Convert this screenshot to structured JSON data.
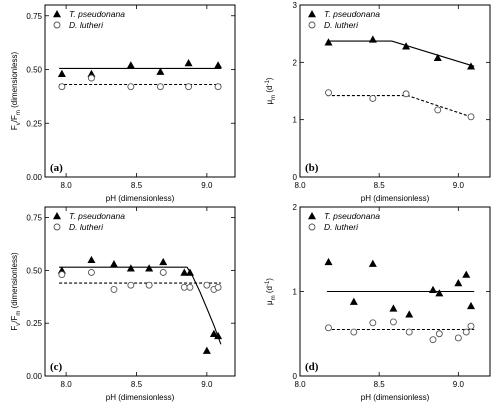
{
  "chart_data": [
    {
      "type": "scatter",
      "panel_label": "(a)",
      "xlabel": "pH (dimensionless)",
      "ylabel_main": "F",
      "ylabel_sub1": "v",
      "ylabel_mid": "/F",
      "ylabel_sub2": "m",
      "ylabel_tail": " (dimensionless)",
      "xlim": [
        7.85,
        9.2
      ],
      "ylim": [
        0.0,
        0.8
      ],
      "xticks": [
        8.0,
        8.5,
        9.0
      ],
      "xtick_labels": [
        "8.0",
        "8.5",
        "9.0"
      ],
      "yticks": [
        0.0,
        0.25,
        0.5,
        0.75
      ],
      "ytick_labels": [
        "0.00",
        "0.25",
        "0.50",
        "0.75"
      ],
      "legend_position": "top-left",
      "series": [
        {
          "name": "T. pseudonana",
          "marker": "triangle-filled",
          "x": [
            7.97,
            8.18,
            8.46,
            8.67,
            8.87,
            9.08
          ],
          "y": [
            0.48,
            0.48,
            0.52,
            0.49,
            0.53,
            0.52
          ]
        },
        {
          "name": "D. lutheri",
          "marker": "circle-open",
          "x": [
            7.97,
            8.18,
            8.46,
            8.67,
            8.87,
            9.08
          ],
          "y": [
            0.42,
            0.46,
            0.42,
            0.42,
            0.42,
            0.42
          ]
        }
      ],
      "fits": [
        {
          "style": "solid",
          "x": [
            7.95,
            9.1
          ],
          "y": [
            0.505,
            0.505
          ]
        },
        {
          "style": "dashed",
          "x": [
            7.95,
            9.1
          ],
          "y": [
            0.43,
            0.43
          ]
        }
      ]
    },
    {
      "type": "scatter",
      "panel_label": "(b)",
      "xlabel": "pH (dimensionless)",
      "ylabel_main": "μ",
      "ylabel_sub1": "m",
      "ylabel_mid": " (d",
      "ylabel_sup": "-1",
      "ylabel_tail": ")",
      "xlim": [
        8.0,
        9.2
      ],
      "ylim": [
        0.0,
        3.0
      ],
      "xticks": [
        8.0,
        8.5,
        9.0
      ],
      "xtick_labels": [
        "8.0",
        "8.5",
        "9.0"
      ],
      "yticks": [
        0,
        1,
        2,
        3
      ],
      "ytick_labels": [
        "0",
        "1",
        "2",
        "3"
      ],
      "legend_position": "top-left",
      "series": [
        {
          "name": "T. pseudonana",
          "marker": "triangle-filled",
          "x": [
            8.18,
            8.46,
            8.67,
            8.87,
            9.08
          ],
          "y": [
            2.35,
            2.4,
            2.28,
            2.08,
            1.93
          ]
        },
        {
          "name": "D. lutheri",
          "marker": "circle-open",
          "x": [
            8.18,
            8.46,
            8.67,
            8.87,
            9.08
          ],
          "y": [
            1.47,
            1.37,
            1.45,
            1.17,
            1.05
          ]
        }
      ],
      "fits": [
        {
          "style": "solid",
          "x": [
            8.17,
            8.58,
            9.1
          ],
          "y": [
            2.37,
            2.37,
            1.93
          ]
        },
        {
          "style": "dashed",
          "x": [
            8.17,
            8.68,
            9.1
          ],
          "y": [
            1.42,
            1.42,
            1.03
          ]
        }
      ]
    },
    {
      "type": "scatter",
      "panel_label": "(c)",
      "xlabel": "pH (dimensionless)",
      "ylabel_main": "F",
      "ylabel_sub1": "v",
      "ylabel_mid": "/F",
      "ylabel_sub2": "m",
      "ylabel_tail": " (dimensionless)",
      "xlim": [
        7.85,
        9.2
      ],
      "ylim": [
        0.0,
        0.8
      ],
      "xticks": [
        8.0,
        8.5,
        9.0
      ],
      "xtick_labels": [
        "8.0",
        "8.5",
        "9.0"
      ],
      "yticks": [
        0.0,
        0.25,
        0.5,
        0.75
      ],
      "ytick_labels": [
        "0.00",
        "0.25",
        "0.50",
        "0.75"
      ],
      "legend_position": "top-left",
      "series": [
        {
          "name": "T. pseudonana",
          "marker": "triangle-filled",
          "x": [
            7.97,
            8.18,
            8.34,
            8.46,
            8.59,
            8.69,
            8.84,
            8.88,
            9.0,
            9.05,
            9.08
          ],
          "y": [
            0.5,
            0.55,
            0.53,
            0.51,
            0.51,
            0.54,
            0.49,
            0.49,
            0.12,
            0.2,
            0.19
          ]
        },
        {
          "name": "D. lutheri",
          "marker": "circle-open",
          "x": [
            7.97,
            8.18,
            8.34,
            8.46,
            8.59,
            8.69,
            8.84,
            8.88,
            9.0,
            9.05,
            9.08
          ],
          "y": [
            0.48,
            0.49,
            0.41,
            0.43,
            0.43,
            0.49,
            0.42,
            0.42,
            0.43,
            0.41,
            0.42
          ]
        }
      ],
      "fits": [
        {
          "style": "solid",
          "x": [
            7.95,
            8.86,
            8.9,
            8.95,
            9.0,
            9.05,
            9.1
          ],
          "y": [
            0.515,
            0.515,
            0.47,
            0.4,
            0.32,
            0.24,
            0.15
          ]
        },
        {
          "style": "dashed",
          "x": [
            7.95,
            9.1
          ],
          "y": [
            0.44,
            0.44
          ]
        }
      ]
    },
    {
      "type": "scatter",
      "panel_label": "(d)",
      "xlabel": "pH (dimensionless)",
      "ylabel_main": "μ",
      "ylabel_sub1": "m",
      "ylabel_mid": " (d",
      "ylabel_sup": "-1",
      "ylabel_tail": ")",
      "xlim": [
        8.0,
        9.2
      ],
      "ylim": [
        0.0,
        2.0
      ],
      "xticks": [
        8.0,
        8.5,
        9.0
      ],
      "xtick_labels": [
        "8.0",
        "8.5",
        "9.0"
      ],
      "yticks": [
        0,
        1,
        2
      ],
      "ytick_labels": [
        "0",
        "1",
        "2"
      ],
      "legend_position": "top-left",
      "series": [
        {
          "name": "T. pseudonana",
          "marker": "triangle-filled",
          "x": [
            8.18,
            8.34,
            8.46,
            8.59,
            8.69,
            8.84,
            8.88,
            9.0,
            9.05,
            9.08
          ],
          "y": [
            1.35,
            0.88,
            1.33,
            0.8,
            0.73,
            1.02,
            0.98,
            1.1,
            1.2,
            0.83
          ]
        },
        {
          "name": "D. lutheri",
          "marker": "circle-open",
          "x": [
            8.18,
            8.34,
            8.46,
            8.59,
            8.69,
            8.84,
            8.88,
            9.0,
            9.05,
            9.08
          ],
          "y": [
            0.57,
            0.52,
            0.63,
            0.64,
            0.52,
            0.43,
            0.5,
            0.45,
            0.52,
            0.59
          ]
        }
      ],
      "fits": [
        {
          "style": "solid",
          "x": [
            8.17,
            9.1
          ],
          "y": [
            1.0,
            1.0
          ]
        },
        {
          "style": "dashed",
          "x": [
            8.17,
            9.1
          ],
          "y": [
            0.55,
            0.55
          ]
        }
      ]
    }
  ]
}
